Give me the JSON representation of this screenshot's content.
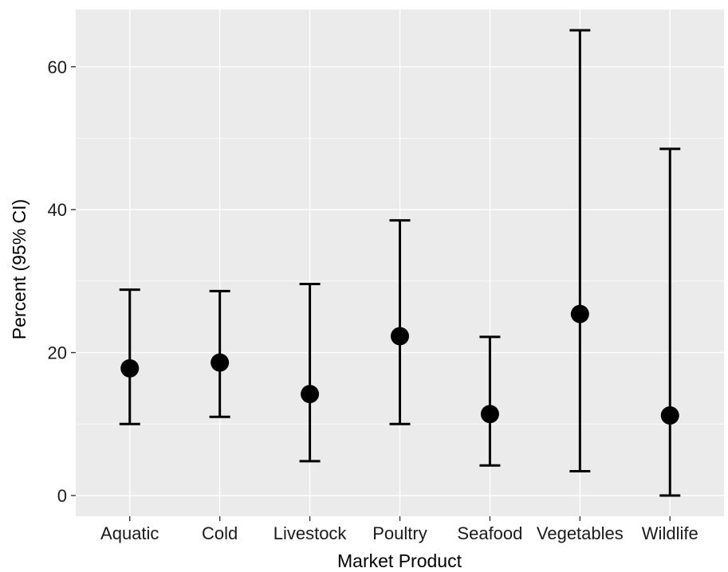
{
  "chart_data": {
    "type": "scatter",
    "title": "",
    "xlabel": "Market Product",
    "ylabel": "Percent (95% CI)",
    "categories": [
      "Aquatic",
      "Cold",
      "Livestock",
      "Poultry",
      "Seafood",
      "Vegetables",
      "Wildlife"
    ],
    "series": [
      {
        "estimate": [
          17.8,
          18.6,
          14.2,
          22.3,
          11.4,
          25.4,
          11.2
        ],
        "lower": [
          10.0,
          11.0,
          4.8,
          10.0,
          4.2,
          3.4,
          0.0
        ],
        "upper": [
          28.8,
          28.6,
          29.6,
          38.5,
          22.2,
          65.1,
          48.5
        ]
      }
    ],
    "y_ticks": [
      0,
      20,
      40,
      60
    ],
    "ylim": [
      -2.9,
      68.0
    ],
    "grid": true,
    "legend": "none",
    "colors": {
      "panel": "#ebebeb",
      "marks": "#000000",
      "grid": "#ffffff"
    }
  }
}
